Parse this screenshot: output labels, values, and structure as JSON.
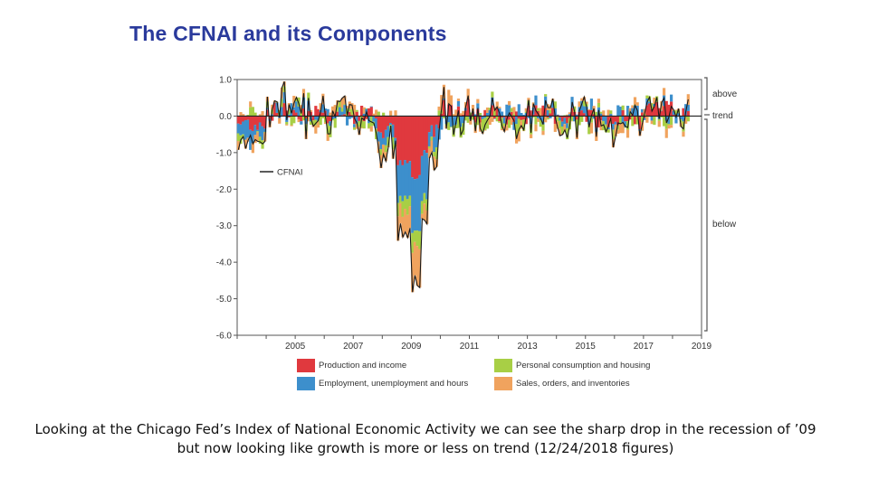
{
  "title": "The CFNAI and its Components",
  "chart_data": {
    "type": "bar",
    "stacked": true,
    "x_range": [
      2003.0,
      2019.0
    ],
    "x_ticks": [
      "2005",
      "2007",
      "2009",
      "2011",
      "2013",
      "2015",
      "2017",
      "2019"
    ],
    "y_ticks": [
      "1.0",
      "0.0",
      "-1.0",
      "-2.0",
      "-3.0",
      "-4.0",
      "-5.0",
      "-6.0"
    ],
    "ylim": [
      -6.0,
      1.0
    ],
    "line_legend": "CFNAI",
    "bracket_labels": [
      "above",
      "trend",
      "below"
    ],
    "legend_position": "bottom",
    "series": [
      {
        "key": "production",
        "name": "Production and income",
        "color": "#e0393e"
      },
      {
        "key": "employment",
        "name": "Employment, unemployment and hours",
        "color": "#3d8fcc"
      },
      {
        "key": "consumption",
        "name": "Personal consumption and housing",
        "color": "#a8cf45"
      },
      {
        "key": "sales",
        "name": "Sales, orders, and inventories",
        "color": "#f0a35e"
      }
    ],
    "approximate_periods": [
      {
        "from": 2003.0,
        "to": 2004.0,
        "cfnai": -0.6,
        "production": -0.2,
        "employment": -0.3,
        "consumption": 0.0,
        "sales": -0.1
      },
      {
        "from": 2004.0,
        "to": 2006.0,
        "cfnai": 0.3,
        "production": 0.12,
        "employment": 0.1,
        "consumption": 0.03,
        "sales": 0.05
      },
      {
        "from": 2006.0,
        "to": 2007.8,
        "cfnai": 0.0,
        "production": 0.03,
        "employment": -0.02,
        "consumption": -0.05,
        "sales": 0.04
      },
      {
        "from": 2007.8,
        "to": 2008.5,
        "cfnai": -0.9,
        "production": -0.4,
        "employment": -0.3,
        "consumption": -0.1,
        "sales": -0.1
      },
      {
        "from": 2008.5,
        "to": 2009.0,
        "cfnai": -3.2,
        "production": -1.3,
        "employment": -1.0,
        "consumption": -0.3,
        "sales": -0.6
      },
      {
        "from": 2009.0,
        "to": 2009.3,
        "cfnai": -4.6,
        "production": -1.7,
        "employment": -1.5,
        "consumption": -0.4,
        "sales": -1.0
      },
      {
        "from": 2009.3,
        "to": 2009.6,
        "cfnai": -2.8,
        "production": -1.0,
        "employment": -1.2,
        "consumption": -0.3,
        "sales": -0.3
      },
      {
        "from": 2009.6,
        "to": 2010.0,
        "cfnai": -0.9,
        "production": -0.3,
        "employment": -0.4,
        "consumption": -0.1,
        "sales": -0.1
      },
      {
        "from": 2010.0,
        "to": 2011.0,
        "cfnai": 0.2,
        "production": 0.25,
        "employment": -0.1,
        "consumption": -0.1,
        "sales": 0.15
      },
      {
        "from": 2011.0,
        "to": 2015.0,
        "cfnai": 0.0,
        "production": 0.04,
        "employment": 0.05,
        "consumption": -0.08,
        "sales": -0.01
      },
      {
        "from": 2015.0,
        "to": 2017.0,
        "cfnai": -0.15,
        "production": -0.1,
        "employment": 0.05,
        "consumption": -0.05,
        "sales": -0.05
      },
      {
        "from": 2017.0,
        "to": 2018.6,
        "cfnai": 0.2,
        "production": 0.15,
        "employment": 0.05,
        "consumption": -0.02,
        "sales": 0.02
      }
    ]
  },
  "caption": {
    "line1": "Looking at the Chicago Fed’s Index of National Economic Activity we can see the sharp drop in the recession of ’09",
    "line2": "but now looking like growth is more or less on trend (12/24/2018 figures)"
  }
}
